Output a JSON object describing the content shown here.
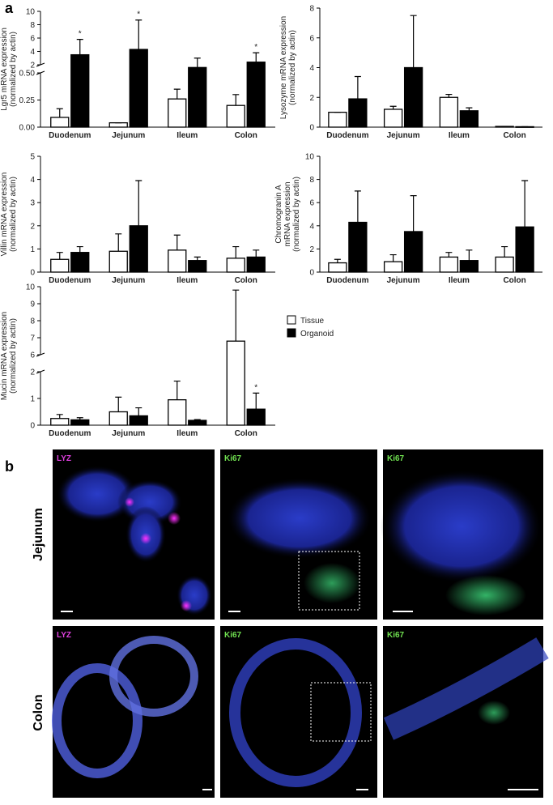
{
  "panel_labels": [
    "a",
    "b"
  ],
  "chart_data": [
    {
      "type": "bar",
      "ylabel": [
        "Lgr5 mRNA expression",
        "(normalized by actin)"
      ],
      "categories": [
        "Duodenum",
        "Jejunum",
        "Ileum",
        "Colon"
      ],
      "series": [
        {
          "name": "Tissue",
          "color": "#ffffff",
          "values": [
            0.09,
            0.04,
            0.26,
            0.2
          ],
          "errors": [
            0.08,
            0,
            0.09,
            0.1
          ]
        },
        {
          "name": "Organoid",
          "color": "#000000",
          "values": [
            3.5,
            4.3,
            1.5,
            2.4
          ],
          "errors": [
            2.3,
            4.4,
            1.5,
            1.4
          ],
          "significance": [
            "*",
            "*",
            null,
            "*"
          ]
        }
      ],
      "ylim": [
        0,
        10
      ],
      "ybreak": [
        0.5,
        2
      ],
      "yticks": [
        {
          "value": 0,
          "label": "0.00"
        },
        {
          "value": 0.25,
          "label": "0.25"
        },
        {
          "value": 0.5,
          "label": "0.50"
        },
        2,
        4,
        6,
        8,
        10
      ]
    },
    {
      "type": "bar",
      "ylabel": [
        "Lysozyme mRNA expression",
        "(normalized by actin)"
      ],
      "categories": [
        "Duodenum",
        "Jejunum",
        "Ileum",
        "Colon"
      ],
      "series": [
        {
          "name": "Tissue",
          "color": "#ffffff",
          "values": [
            1.0,
            1.2,
            2.0,
            0.05
          ],
          "errors": [
            0,
            0.2,
            0.2,
            0
          ]
        },
        {
          "name": "Organoid",
          "color": "#000000",
          "values": [
            1.9,
            4.0,
            1.1,
            0.03
          ],
          "errors": [
            1.5,
            3.5,
            0.2,
            0
          ]
        }
      ],
      "ylim": [
        0,
        8
      ],
      "yticks": [
        0,
        2,
        4,
        6,
        8
      ]
    },
    {
      "type": "bar",
      "ylabel": [
        "Villin mRNA expression",
        "(normalized by actin)"
      ],
      "categories": [
        "Duodenum",
        "Jejunum",
        "Ileum",
        "Colon"
      ],
      "series": [
        {
          "name": "Tissue",
          "color": "#ffffff",
          "values": [
            0.55,
            0.9,
            0.95,
            0.6
          ],
          "errors": [
            0.3,
            0.75,
            0.65,
            0.5
          ]
        },
        {
          "name": "Organoid",
          "color": "#000000",
          "values": [
            0.85,
            2.0,
            0.5,
            0.65
          ],
          "errors": [
            0.25,
            1.95,
            0.15,
            0.3
          ]
        }
      ],
      "ylim": [
        0,
        5
      ],
      "yticks": [
        0,
        1,
        2,
        3,
        4,
        5
      ]
    },
    {
      "type": "bar",
      "ylabel": [
        "Chromogranin A",
        "mRNA expression",
        "(normalized by actin)"
      ],
      "categories": [
        "Duodenum",
        "Jejunum",
        "Ileum",
        "Colon"
      ],
      "series": [
        {
          "name": "Tissue",
          "color": "#ffffff",
          "values": [
            0.8,
            0.9,
            1.3,
            1.3
          ],
          "errors": [
            0.3,
            0.6,
            0.4,
            0.9
          ]
        },
        {
          "name": "Organoid",
          "color": "#000000",
          "values": [
            4.3,
            3.5,
            1.0,
            3.9
          ],
          "errors": [
            2.7,
            3.1,
            0.9,
            4.0
          ]
        }
      ],
      "ylim": [
        0,
        10
      ],
      "yticks": [
        0,
        2,
        4,
        6,
        8,
        10
      ]
    },
    {
      "type": "bar",
      "ylabel": [
        "Mucin mRNA expression",
        "(normalized by actin)"
      ],
      "categories": [
        "Duodenum",
        "Jejunum",
        "Ileum",
        "Colon"
      ],
      "series": [
        {
          "name": "Tissue",
          "color": "#ffffff",
          "values": [
            0.25,
            0.5,
            0.95,
            6.8
          ],
          "errors": [
            0.15,
            0.55,
            0.7,
            3.0
          ]
        },
        {
          "name": "Organoid",
          "color": "#000000",
          "values": [
            0.2,
            0.35,
            0.18,
            0.6
          ],
          "errors": [
            0.08,
            0.3,
            0.03,
            0.6
          ],
          "significance": [
            null,
            null,
            null,
            "*"
          ]
        }
      ],
      "ylim": [
        0,
        10
      ],
      "ybreak": [
        2,
        6
      ],
      "yticks": [
        0,
        1,
        2,
        6,
        7,
        8,
        9,
        10
      ]
    }
  ],
  "panel_b": {
    "rows": [
      {
        "label": "Jejunum",
        "images": [
          "LYZ",
          "Ki67",
          "Ki67"
        ]
      },
      {
        "label": "Colon",
        "images": [
          "LYZ",
          "Ki67",
          "Ki67"
        ]
      }
    ]
  }
}
